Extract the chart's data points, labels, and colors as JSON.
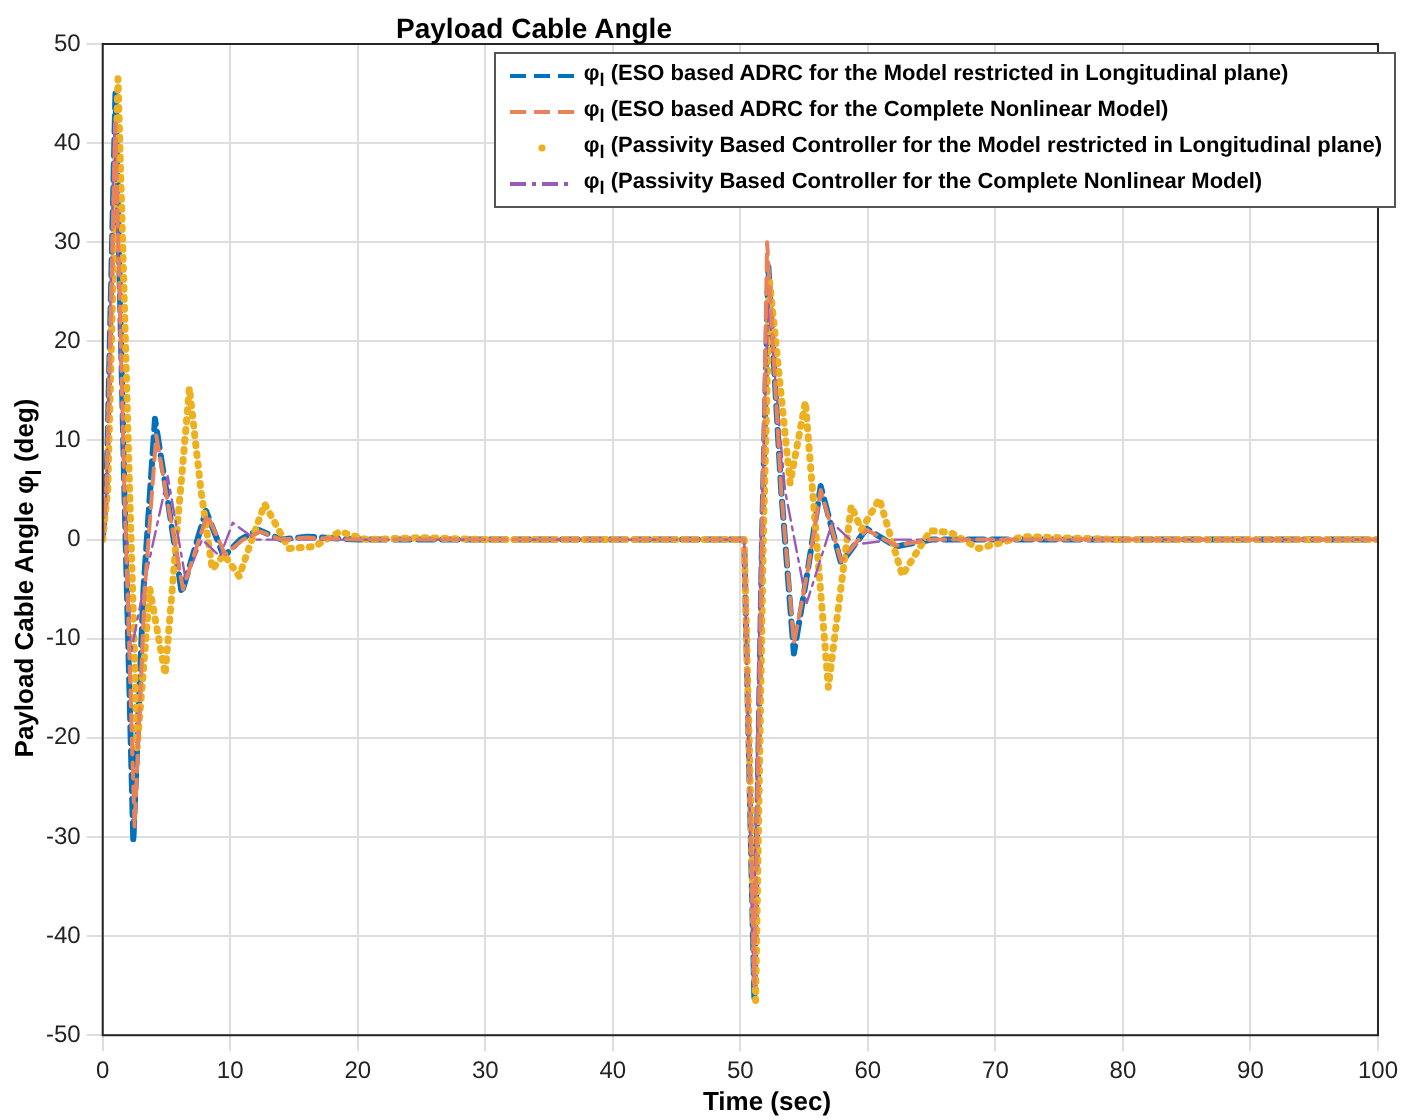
{
  "chart_data": {
    "type": "line",
    "title": "Payload Cable Angle",
    "xlabel": "Time (sec)",
    "ylabel": "Payload Cable Angle φ$_{l}$ (deg)",
    "xlim": [
      0,
      100
    ],
    "xticks": [
      0,
      10,
      20,
      30,
      40,
      50,
      60,
      70,
      80,
      90,
      100
    ],
    "ylim": [
      -50,
      50
    ],
    "yticks": [
      -50,
      -40,
      -30,
      -20,
      -10,
      0,
      10,
      20,
      30,
      40,
      50
    ],
    "grid": true,
    "legend": "top right",
    "marker": "none",
    "series": [
      {
        "name": "φ$_{l}$ (ESO based ADRC for the Model restricted in Longitudinal plane)",
        "color": "#0072bd",
        "line_style": "dashed",
        "x": [
          0,
          0.3,
          1.0,
          1.7,
          2.4,
          3.2,
          4.1,
          5.1,
          6.2,
          7.2,
          8.1,
          9.5,
          10.8,
          12.2,
          14,
          16,
          20,
          30,
          50,
          50.3,
          51.1,
          51.7,
          52.2,
          53.2,
          54.2,
          55.3,
          56.3,
          57.9,
          59.9,
          62.2,
          65,
          70,
          80,
          100
        ],
        "values": [
          0,
          5,
          45,
          5,
          -30.5,
          -5,
          12.2,
          4,
          -5.4,
          -1,
          2.9,
          -1.7,
          0,
          1,
          0,
          0.3,
          0,
          0,
          0,
          0,
          -46.3,
          0,
          27.5,
          5,
          -11.5,
          -3,
          5.4,
          -2.4,
          1.1,
          -0.7,
          0,
          0,
          0,
          0
        ]
      },
      {
        "name": "φ$_{l}$ (ESO based ADRC for the Complete Nonlinear Model)",
        "color": "#e8825a",
        "line_style": "dashed",
        "x": [
          0,
          0.3,
          1.0,
          1.7,
          2.5,
          3.3,
          4.2,
          5.2,
          6.3,
          7.3,
          8.2,
          9.6,
          11,
          12.4,
          14,
          16,
          20,
          30,
          50,
          50.3,
          51.1,
          51.7,
          52.1,
          53.2,
          54.2,
          55.3,
          56.3,
          57.9,
          59.9,
          62.2,
          65,
          70,
          80,
          100
        ],
        "values": [
          0,
          5,
          42,
          5,
          -29,
          -5,
          10.5,
          3,
          -5,
          -1,
          2.5,
          -1.5,
          0,
          0.8,
          0,
          0.2,
          0,
          0,
          0,
          0,
          -45,
          0,
          30,
          5,
          -10.5,
          -3,
          5,
          -2.2,
          1,
          -0.6,
          0,
          0,
          0,
          0
        ]
      },
      {
        "name": "φ$_{l}$ (Passivity Based Controller for the Model restricted in Longitudinal plane)",
        "color": "#edb120",
        "line_style": "dotted",
        "x": [
          0,
          0.4,
          1.2,
          2.0,
          2.7,
          3.7,
          4.9,
          5.9,
          6.8,
          7.7,
          8.6,
          9.5,
          10.7,
          11.7,
          12.7,
          14.6,
          16.6,
          18.6,
          20.7,
          25,
          30,
          50,
          50.3,
          51.2,
          51.8,
          52.3,
          53.9,
          55.1,
          56.9,
          58.7,
          59.5,
          60.9,
          62.7,
          64.9,
          66.5,
          68.7,
          72.2,
          80,
          100
        ],
        "values": [
          0,
          5,
          46.5,
          10,
          -21,
          -5,
          -13.6,
          2,
          15.3,
          5,
          -3,
          -1.5,
          -3.7,
          0,
          3.6,
          -0.9,
          -0.7,
          0.8,
          0,
          0.2,
          0,
          0,
          0,
          -46.5,
          0,
          26,
          5.7,
          13.9,
          -14.9,
          3.4,
          1,
          4.1,
          -3.6,
          0.9,
          0.7,
          -0.9,
          0.3,
          0,
          0
        ]
      },
      {
        "name": "φ$_{l}$ (Passivity Based Controller for the Complete Nonlinear Model)",
        "color": "#9b59b6",
        "line_style": "dashdot",
        "x": [
          0,
          0.3,
          0.9,
          1.6,
          2.2,
          3.5,
          5.1,
          6.5,
          7.8,
          9.2,
          10.2,
          12,
          15,
          20,
          50,
          50.3,
          51,
          51.6,
          52.2,
          53.5,
          55.2,
          57.2,
          59,
          62,
          70,
          100
        ],
        "values": [
          0,
          5,
          42,
          10,
          -11.5,
          -3,
          6.4,
          -4,
          0,
          -1.7,
          1.7,
          0,
          0,
          0,
          0,
          0,
          -44,
          0,
          24,
          5,
          -6.4,
          1.7,
          -0.5,
          0,
          0,
          0
        ]
      }
    ]
  }
}
